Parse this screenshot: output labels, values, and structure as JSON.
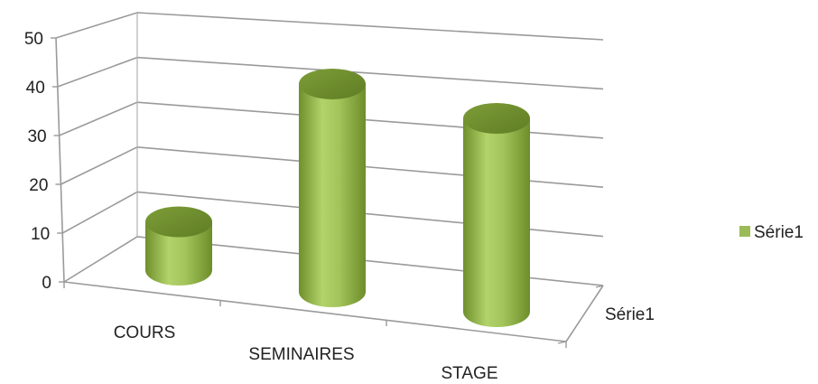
{
  "chart_data": {
    "type": "bar",
    "style": "3d-cylinder",
    "categories": [
      "COURS",
      "SEMINAIRES",
      "STAGE"
    ],
    "series": [
      {
        "name": "Série1",
        "values": [
          10,
          43,
          40
        ],
        "color": "#9bbb59"
      }
    ],
    "depth_axis_label": "Série1",
    "ylim": [
      0,
      50
    ],
    "yticks": [
      0,
      10,
      20,
      30,
      40,
      50
    ],
    "grid": true,
    "legend_position": "right"
  }
}
